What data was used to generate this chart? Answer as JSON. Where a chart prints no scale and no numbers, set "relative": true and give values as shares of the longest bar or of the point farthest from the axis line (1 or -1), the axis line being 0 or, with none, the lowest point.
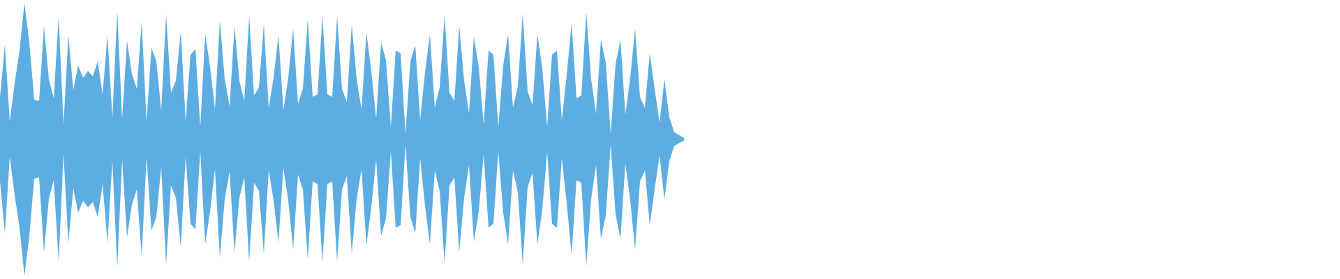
{
  "chart_data": {
    "type": "area",
    "relative": true,
    "categories": [
      null,
      null,
      null,
      null,
      null,
      null,
      null,
      null,
      null,
      null,
      null,
      null,
      null,
      null,
      null,
      null,
      null,
      null,
      null,
      null,
      null,
      null,
      null,
      null,
      null,
      null,
      null,
      null,
      null,
      null,
      null,
      null,
      null,
      null,
      null,
      null,
      null,
      null,
      null,
      null,
      null,
      null,
      null,
      null,
      null,
      null,
      null,
      null,
      null,
      null,
      null,
      null,
      null,
      null,
      null,
      null,
      null,
      null,
      null,
      null,
      null,
      null,
      null,
      null,
      null,
      null,
      null,
      null,
      null,
      null,
      null,
      null,
      null,
      null,
      null,
      null,
      null,
      null,
      null,
      null,
      null,
      null,
      null,
      null,
      null,
      null,
      null,
      null,
      null,
      null,
      null,
      null,
      null,
      null,
      null,
      null,
      null,
      null,
      null,
      null,
      null,
      null,
      null,
      null,
      null,
      null,
      null,
      null,
      null,
      null,
      null,
      null,
      null,
      null,
      null,
      null,
      null,
      null,
      null,
      null,
      null,
      null,
      null,
      null,
      null,
      null,
      null,
      null,
      null,
      null,
      null,
      null,
      null,
      null,
      null,
      null,
      null,
      null,
      null,
      null,
      null
    ],
    "series": [
      {
        "color": "#5dade2",
        "values": [
          0.31,
          0.69,
          0.13,
          0.41,
          0.65,
          1,
          0.71,
          0.29,
          0.28,
          0.83,
          0.44,
          0.3,
          0.9,
          0.11,
          0.76,
          0.36,
          0.54,
          0.45,
          0.5,
          0.46,
          0.57,
          0.33,
          0.76,
          0.16,
          0.94,
          0.15,
          0.72,
          0.48,
          0.37,
          0.86,
          0.13,
          0.67,
          0.57,
          0.21,
          0.92,
          0.34,
          0.43,
          0.79,
          0.13,
          0.62,
          0.66,
          0.09,
          0.77,
          0.53,
          0.22,
          0.87,
          0.44,
          0.24,
          0.83,
          0.43,
          0.28,
          0.9,
          0.32,
          0.38,
          0.84,
          0.23,
          0.45,
          0.76,
          0.21,
          0.45,
          0.81,
          0.26,
          0.37,
          0.88,
          0.31,
          0.33,
          0.9,
          0.33,
          0.31,
          0.9,
          0.37,
          0.27,
          0.84,
          0.44,
          0.22,
          0.78,
          0.5,
          0.15,
          0.71,
          0.58,
          0.09,
          0.65,
          0.63,
          0.04,
          0.57,
          0.69,
          0.14,
          0.49,
          0.77,
          0.23,
          0.38,
          0.91,
          0.34,
          0.28,
          0.83,
          0.43,
          0.19,
          0.75,
          0.53,
          0.11,
          0.65,
          0.62,
          0.09,
          0.54,
          0.77,
          0.23,
          0.39,
          0.92,
          0.35,
          0.25,
          0.77,
          0.52,
          0.09,
          0.62,
          0.65,
          0.14,
          0.47,
          0.85,
          0.3,
          0.32,
          0.93,
          0.44,
          0.19,
          0.73,
          0.56,
          0.04,
          0.55,
          0.73,
          0.18,
          0.45,
          0.81,
          0.31,
          0.23,
          0.63,
          0.37,
          0.12,
          0.44,
          0.16,
          0.05,
          0.03,
          0.01
        ]
      },
      {
        "color": "#5dade2",
        "values": [
          -0.31,
          -0.69,
          -0.13,
          -0.41,
          -0.65,
          -1,
          -0.71,
          -0.29,
          -0.28,
          -0.83,
          -0.44,
          -0.3,
          -0.9,
          -0.11,
          -0.76,
          -0.36,
          -0.54,
          -0.45,
          -0.5,
          -0.46,
          -0.57,
          -0.33,
          -0.76,
          -0.16,
          -0.94,
          -0.15,
          -0.72,
          -0.48,
          -0.37,
          -0.86,
          -0.13,
          -0.67,
          -0.57,
          -0.21,
          -0.92,
          -0.34,
          -0.43,
          -0.79,
          -0.13,
          -0.62,
          -0.66,
          -0.09,
          -0.77,
          -0.53,
          -0.22,
          -0.87,
          -0.44,
          -0.24,
          -0.83,
          -0.43,
          -0.28,
          -0.9,
          -0.32,
          -0.38,
          -0.84,
          -0.23,
          -0.45,
          -0.76,
          -0.21,
          -0.45,
          -0.81,
          -0.26,
          -0.37,
          -0.88,
          -0.31,
          -0.33,
          -0.9,
          -0.33,
          -0.31,
          -0.9,
          -0.37,
          -0.27,
          -0.84,
          -0.44,
          -0.22,
          -0.78,
          -0.5,
          -0.15,
          -0.71,
          -0.58,
          -0.09,
          -0.65,
          -0.63,
          -0.04,
          -0.57,
          -0.69,
          -0.14,
          -0.49,
          -0.77,
          -0.23,
          -0.38,
          -0.91,
          -0.34,
          -0.28,
          -0.83,
          -0.43,
          -0.19,
          -0.75,
          -0.53,
          -0.11,
          -0.65,
          -0.62,
          -0.09,
          -0.54,
          -0.77,
          -0.23,
          -0.39,
          -0.92,
          -0.35,
          -0.25,
          -0.77,
          -0.52,
          -0.09,
          -0.62,
          -0.65,
          -0.14,
          -0.47,
          -0.85,
          -0.3,
          -0.32,
          -0.93,
          -0.44,
          -0.19,
          -0.73,
          -0.56,
          -0.04,
          -0.55,
          -0.73,
          -0.18,
          -0.45,
          -0.81,
          -0.31,
          -0.23,
          -0.63,
          -0.37,
          -0.12,
          -0.44,
          -0.16,
          -0.05,
          -0.03,
          -0.01
        ]
      }
    ]
  }
}
